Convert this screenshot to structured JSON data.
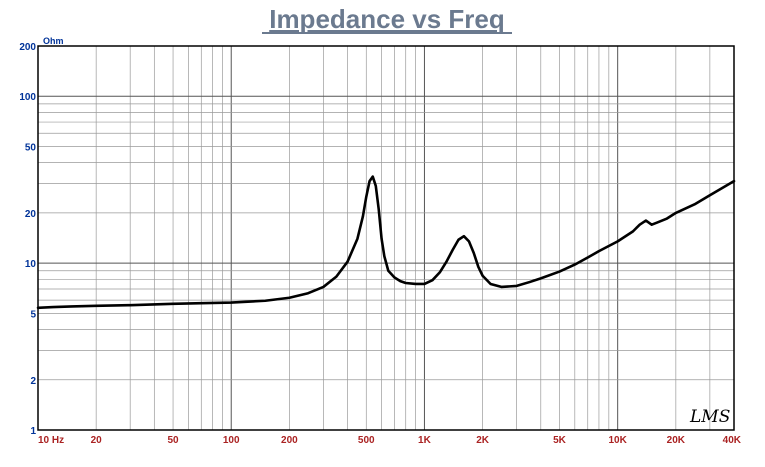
{
  "chart_data": {
    "type": "line",
    "title": "Impedance vs Freq",
    "ylabel": "Ohm",
    "xlabel": "",
    "x_scale": "log",
    "y_scale": "log",
    "xlim": [
      10,
      40000
    ],
    "ylim": [
      1,
      200
    ],
    "grid": true,
    "x_ticks": [
      {
        "value": 10,
        "label": "10  Hz"
      },
      {
        "value": 20,
        "label": "20"
      },
      {
        "value": 50,
        "label": "50"
      },
      {
        "value": 100,
        "label": "100"
      },
      {
        "value": 200,
        "label": "200"
      },
      {
        "value": 500,
        "label": "500"
      },
      {
        "value": 1000,
        "label": "1K"
      },
      {
        "value": 2000,
        "label": "2K"
      },
      {
        "value": 5000,
        "label": "5K"
      },
      {
        "value": 10000,
        "label": "10K"
      },
      {
        "value": 20000,
        "label": "20K"
      },
      {
        "value": 40000,
        "label": "40K"
      }
    ],
    "y_ticks": [
      {
        "value": 1,
        "label": "1"
      },
      {
        "value": 2,
        "label": "2"
      },
      {
        "value": 5,
        "label": "5"
      },
      {
        "value": 10,
        "label": "10"
      },
      {
        "value": 20,
        "label": "20"
      },
      {
        "value": 50,
        "label": "50"
      },
      {
        "value": 100,
        "label": "100"
      },
      {
        "value": 200,
        "label": "200"
      }
    ],
    "watermark": "LMS",
    "series": [
      {
        "color": "#000000",
        "x": [
          10,
          12,
          15,
          20,
          30,
          50,
          70,
          100,
          150,
          200,
          250,
          300,
          350,
          400,
          450,
          480,
          500,
          520,
          540,
          560,
          580,
          600,
          620,
          650,
          700,
          750,
          800,
          900,
          1000,
          1100,
          1200,
          1300,
          1400,
          1500,
          1600,
          1700,
          1800,
          1900,
          2000,
          2200,
          2500,
          3000,
          3500,
          4000,
          5000,
          6000,
          7000,
          8000,
          10000,
          12000,
          13000,
          14000,
          15000,
          16000,
          18000,
          20000,
          25000,
          30000,
          40000
        ],
        "y": [
          5.4,
          5.45,
          5.5,
          5.55,
          5.6,
          5.7,
          5.75,
          5.8,
          5.95,
          6.2,
          6.6,
          7.2,
          8.3,
          10.2,
          14,
          19,
          25,
          31,
          33,
          29,
          21,
          14,
          11,
          9,
          8.2,
          7.8,
          7.6,
          7.5,
          7.5,
          7.9,
          8.8,
          10.2,
          12,
          13.8,
          14.5,
          13.5,
          11.5,
          9.5,
          8.4,
          7.5,
          7.2,
          7.3,
          7.7,
          8.1,
          8.9,
          9.8,
          10.8,
          11.8,
          13.5,
          15.5,
          17,
          18,
          17,
          17.5,
          18.5,
          20,
          22.5,
          25.5,
          31
        ]
      }
    ]
  }
}
